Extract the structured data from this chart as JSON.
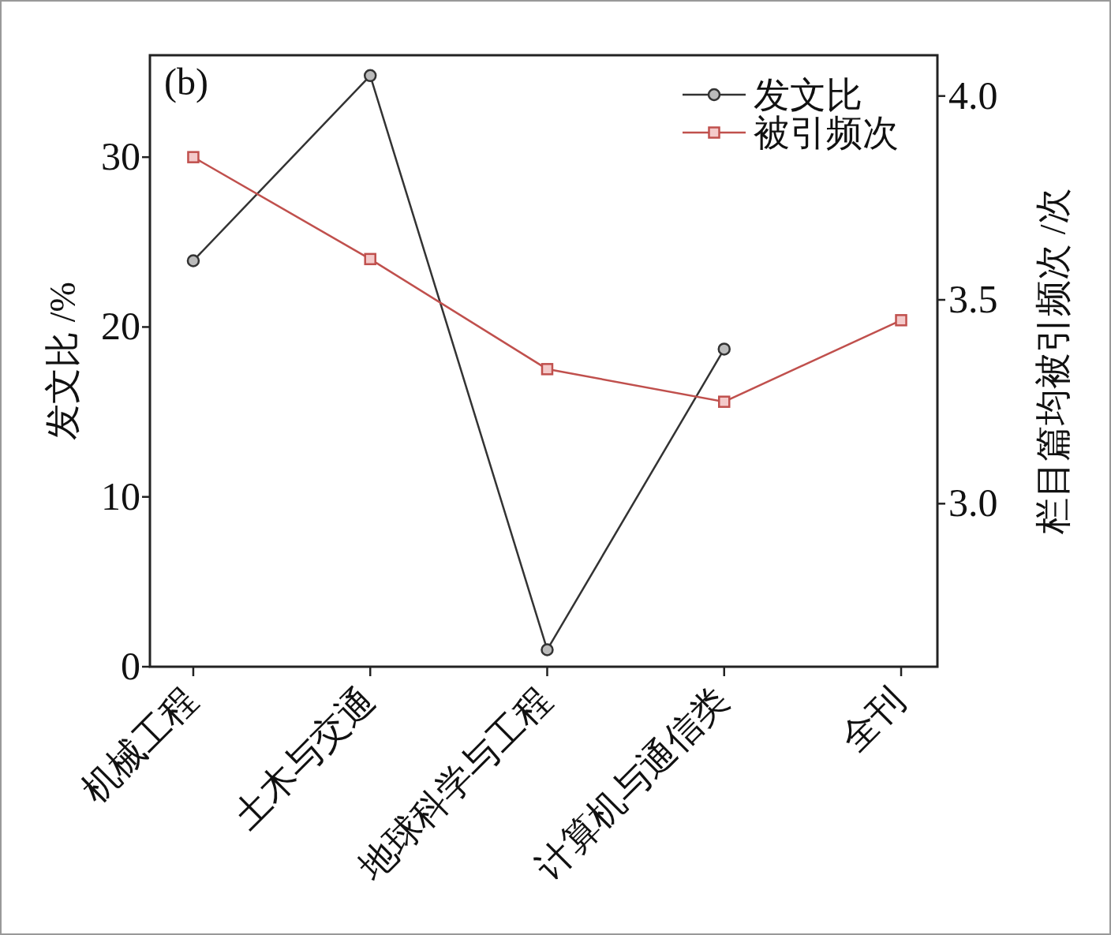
{
  "chart_data": {
    "type": "line",
    "categories": [
      "机械工程",
      "土木与交通",
      "地球科学与工程",
      "计算机与通信类",
      "全刊"
    ],
    "series": [
      {
        "name": "发文比",
        "color": "#333333",
        "marker": "circle",
        "values": [
          23.9,
          34.8,
          1.0,
          18.7,
          null
        ]
      },
      {
        "name": "被引频次",
        "color": "#c0504d",
        "marker": "square",
        "axis": "y2",
        "values": [
          3.85,
          3.6,
          3.33,
          3.25,
          3.45
        ]
      }
    ],
    "ylabel": "发文比 /%",
    "y2label": "栏目篇均被引频次 /次",
    "ylim": [
      0,
      36
    ],
    "yticks": [
      0,
      10,
      20,
      30
    ],
    "y2lim": [
      2.6,
      4.1
    ],
    "y2ticks": [
      {
        "value": 3.0,
        "label": "3.0"
      },
      3.5,
      {
        "value": 4.0,
        "label": "4.0"
      }
    ],
    "legend": "top right",
    "annotations": [
      "(b)"
    ]
  }
}
